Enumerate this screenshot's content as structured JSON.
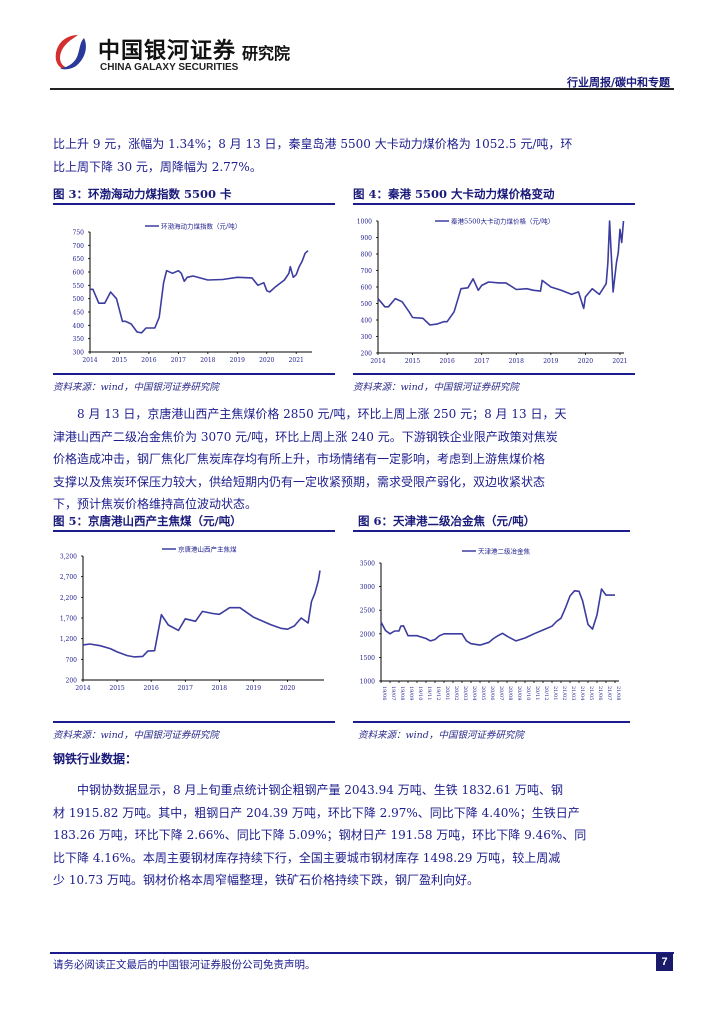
{
  "header": {
    "logo_cn": "中国银河证券",
    "logo_en": "CHINA GALAXY SECURITIES",
    "logo_inst": "研究院",
    "report_tag": "行业周报/碳中和专题"
  },
  "paragraphs": {
    "p1_line1": "比上升 9 元，涨幅为 1.34%；8 月 13 日，秦皇岛港 5500 大卡动力煤价格为 1052.5 元/吨，环",
    "p1_line2": "比上周下降 30 元，周降幅为 2.77%。",
    "p2_lines": [
      "　　8 月 13 日，京唐港山西产主焦煤价格 2850 元/吨，环比上周上涨 250 元；8 月 13 日，天",
      "津港山西产二级冶金焦价为 3070 元/吨，环比上周上涨 240 元。下游钢铁企业限产政策对焦炭",
      "价格造成冲击，钢厂焦化厂焦炭库存均有所上升，市场情绪有一定影响，考虑到上游焦煤价格",
      "支撑以及焦炭环保压力较大，供给短期内仍有一定收紧预期，需求受限产弱化，双边收紧状态",
      "下，预计焦炭价格维持高位波动状态。"
    ],
    "steel_heading": "钢铁行业数据：",
    "p3_lines": [
      "　　中钢协数据显示，8 月上旬重点统计钢企粗钢产量 2043.94 万吨、生铁 1832.61 万吨、钢",
      "材 1915.82 万吨。其中，粗钢日产 204.39 万吨，环比下降 2.97%、同比下降 4.40%；生铁日产",
      "183.26 万吨，环比下降 2.66%、同比下降 5.09%；钢材日产 191.58 万吨，环比下降 9.46%、同",
      "比下降 4.16%。本周主要钢材库存持续下行，全国主要城市钢材库存 1498.29 万吨，较上周减",
      "少 10.73 万吨。钢材价格本周窄幅整理，铁矿石价格持续下跌，钢厂盈利向好。"
    ]
  },
  "figures": [
    {
      "title": "图 3：环渤海动力煤指数 5500 卡",
      "source": "资料来源：wind，中国银河证券研究院"
    },
    {
      "title": "图 4：秦港 5500 大卡动力煤价格变动",
      "source": "资料来源：wind，中国银河证券研究院"
    },
    {
      "title": "图 5：京唐港山西产主焦煤（元/吨）",
      "source": "资料来源：wind，中国银河证券研究院"
    },
    {
      "title": "图 6：天津港二级冶金焦（元/吨）",
      "source": "资料来源：wind，中国银河证券研究院"
    }
  ],
  "footer": {
    "disclaimer": "请务必阅读正文最后的中国银河证券股份公司免责声明。",
    "page_number": "7"
  },
  "colors": {
    "line": "#3c3ca0",
    "text": "#1c1c8c",
    "rule": "#1c1c8c"
  },
  "chart_data": [
    {
      "type": "line",
      "title": "图 3：环渤海动力煤指数 5500 卡",
      "legend": [
        "环渤海动力煤指数（元/吨）"
      ],
      "xlabel": "",
      "ylabel": "",
      "ylim": [
        300,
        750
      ],
      "yticks": [
        300,
        350,
        400,
        450,
        500,
        550,
        600,
        650,
        700,
        750
      ],
      "xticks": [
        "2014",
        "2015",
        "2016",
        "2017",
        "2018",
        "2019",
        "2020",
        "2021"
      ],
      "x": [
        2014.0,
        2014.1,
        2014.3,
        2014.5,
        2014.7,
        2014.9,
        2015.1,
        2015.2,
        2015.4,
        2015.6,
        2015.75,
        2015.9,
        2016.2,
        2016.35,
        2016.5,
        2016.6,
        2016.8,
        2017.0,
        2017.1,
        2017.2,
        2017.3,
        2017.5,
        2018.0,
        2018.5,
        2019.0,
        2019.5,
        2019.7,
        2019.9,
        2020.0,
        2020.1,
        2020.3,
        2020.6,
        2020.75,
        2020.8,
        2020.9,
        2021.0,
        2021.1,
        2021.2,
        2021.3,
        2021.4
      ],
      "values": [
        535,
        535,
        483,
        483,
        525,
        500,
        415,
        415,
        405,
        375,
        372,
        390,
        390,
        430,
        560,
        605,
        595,
        605,
        595,
        565,
        580,
        585,
        570,
        572,
        580,
        578,
        550,
        560,
        530,
        525,
        545,
        570,
        595,
        620,
        580,
        590,
        620,
        640,
        670,
        680
      ]
    },
    {
      "type": "line",
      "title": "图 4：秦港 5500 大卡动力煤价格变动",
      "legend": [
        "秦港5500大卡动力煤价格（元/吨）"
      ],
      "xlabel": "",
      "ylabel": "",
      "ylim": [
        200,
        1000
      ],
      "yticks": [
        200,
        300,
        400,
        500,
        600,
        700,
        800,
        900,
        1000
      ],
      "xticks": [
        "2014",
        "2015",
        "2016",
        "2017",
        "2018",
        "2019",
        "2020",
        "2021"
      ],
      "x": [
        2014.0,
        2014.2,
        2014.3,
        2014.5,
        2014.7,
        2014.9,
        2015.0,
        2015.3,
        2015.5,
        2015.7,
        2015.9,
        2016.0,
        2016.2,
        2016.4,
        2016.6,
        2016.75,
        2016.9,
        2017.0,
        2017.2,
        2017.5,
        2017.7,
        2018.0,
        2018.3,
        2018.5,
        2018.7,
        2018.75,
        2019.0,
        2019.3,
        2019.6,
        2019.8,
        2019.95,
        2020.0,
        2020.2,
        2020.4,
        2020.6,
        2020.65,
        2020.7,
        2020.8,
        2020.9,
        2020.95,
        2021.0,
        2021.05,
        2021.1
      ],
      "values": [
        530,
        480,
        480,
        530,
        510,
        450,
        415,
        410,
        370,
        375,
        390,
        390,
        450,
        590,
        595,
        650,
        580,
        610,
        630,
        625,
        625,
        585,
        590,
        580,
        575,
        640,
        600,
        580,
        555,
        570,
        470,
        540,
        590,
        555,
        620,
        750,
        1000,
        570,
        750,
        810,
        950,
        870,
        1000
      ]
    },
    {
      "type": "line",
      "title": "图 5：京唐港山西产主焦煤（元/吨）",
      "legend": [
        "京唐港山西产主焦煤"
      ],
      "xlabel": "",
      "ylabel": "",
      "ylim": [
        200,
        3200
      ],
      "yticks": [
        "200",
        "700",
        "1,200",
        "1,700",
        "2,200",
        "2,700",
        "3,200"
      ],
      "xticks": [
        "2014",
        "2015",
        "2016",
        "2017",
        "2018",
        "2019",
        "2020"
      ],
      "x": [
        2014.0,
        2014.2,
        2014.5,
        2014.8,
        2015.0,
        2015.3,
        2015.5,
        2015.75,
        2015.9,
        2016.1,
        2016.3,
        2016.5,
        2016.8,
        2017.0,
        2017.3,
        2017.5,
        2017.8,
        2018.0,
        2018.3,
        2018.6,
        2019.0,
        2019.2,
        2019.5,
        2019.8,
        2020.0,
        2020.2,
        2020.4,
        2020.6,
        2020.7,
        2020.8,
        2020.9,
        2020.95
      ],
      "values": [
        1050,
        1070,
        1030,
        960,
        880,
        790,
        760,
        770,
        900,
        910,
        1780,
        1530,
        1400,
        1680,
        1620,
        1860,
        1810,
        1790,
        1950,
        1950,
        1720,
        1650,
        1540,
        1450,
        1430,
        1510,
        1700,
        1580,
        2100,
        2300,
        2600,
        2850
      ]
    },
    {
      "type": "line",
      "title": "图 6：天津港二级冶金焦（元/吨）",
      "legend": [
        "天津港二级冶金焦"
      ],
      "xlabel": "",
      "ylabel": "",
      "ylim": [
        1000,
        3500
      ],
      "yticks": [
        1000,
        1500,
        2000,
        2500,
        3000,
        3500
      ],
      "xticks": [
        "19/06",
        "19/07",
        "19/08",
        "19/09",
        "19/10",
        "19/11",
        "19/12",
        "20/01",
        "20/02",
        "20/03",
        "20/04",
        "20/05",
        "20/06",
        "20/07",
        "20/08",
        "20/09",
        "20/10",
        "20/11",
        "20/12",
        "21/01",
        "21/02",
        "21/03",
        "21/04",
        "21/05",
        "21/06",
        "21/07",
        "21/08"
      ],
      "x": [
        0,
        0.5,
        1,
        1.5,
        2,
        2.2,
        2.5,
        3,
        4,
        5,
        5.5,
        6,
        6.5,
        7,
        8,
        9,
        9.5,
        10,
        11,
        12,
        12.5,
        13,
        13.5,
        14,
        15,
        16,
        17,
        18,
        19,
        19.5,
        20,
        20.5,
        21,
        21.5,
        22,
        22.4,
        23,
        23.5,
        24,
        24.5,
        25,
        25.5,
        26
      ],
      "values": [
        2250,
        2070,
        2000,
        2060,
        2060,
        2160,
        2170,
        1960,
        1960,
        1900,
        1850,
        1880,
        1960,
        2000,
        2000,
        2000,
        1850,
        1790,
        1760,
        1820,
        1900,
        1960,
        2010,
        1950,
        1850,
        1910,
        2000,
        2080,
        2160,
        2260,
        2330,
        2550,
        2800,
        2910,
        2900,
        2700,
        2200,
        2100,
        2400,
        2950,
        2820,
        2820,
        2820
      ]
    }
  ]
}
